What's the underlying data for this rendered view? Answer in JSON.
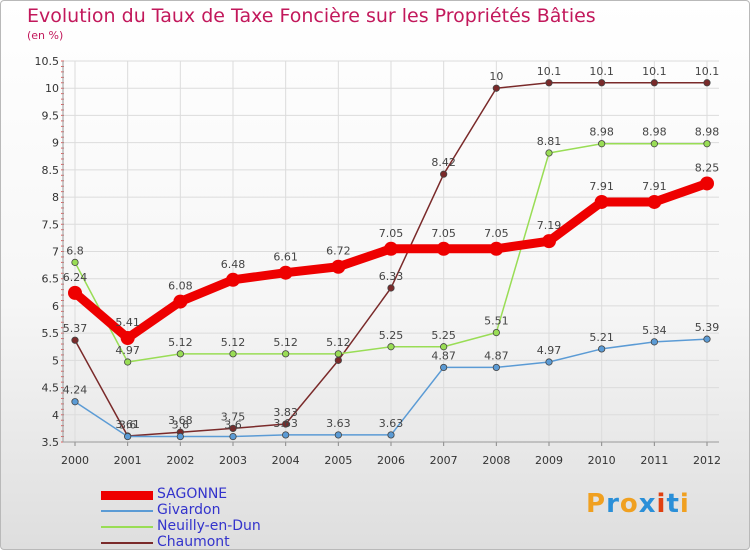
{
  "header": {
    "title": "Evolution du Taux de Taxe Foncière sur les Propriétés Bâties",
    "subtitle": "(en %)"
  },
  "logo": {
    "text": "Proxiti",
    "letters": [
      "P",
      "r",
      "o",
      "x",
      "i",
      "t",
      "i"
    ],
    "colors": [
      "#f0a020",
      "#2a8fd8",
      "#f0a020",
      "#2a8fd8",
      "#e04010",
      "#2a8fd8",
      "#f0a020"
    ]
  },
  "chart_data": {
    "type": "line",
    "x": [
      "2000",
      "2001",
      "2002",
      "2003",
      "2004",
      "2005",
      "2006",
      "2007",
      "2008",
      "2009",
      "2010",
      "2011",
      "2012"
    ],
    "ylim": [
      3.5,
      10.5
    ],
    "yticks": [
      "3.5",
      "4",
      "4.5",
      "5",
      "5.5",
      "6",
      "6.5",
      "7",
      "7.5",
      "8",
      "8.5",
      "9",
      "9.5",
      "10",
      "10.5"
    ],
    "grid": true,
    "legend_position": "bottom-left",
    "series": [
      {
        "name": "SAGONNE",
        "color": "#ee0000",
        "values": [
          6.24,
          5.41,
          6.08,
          6.48,
          6.61,
          6.72,
          7.05,
          7.05,
          7.05,
          7.19,
          7.91,
          7.91,
          8.25
        ],
        "labels": [
          "6.24",
          "5.41",
          "6.08",
          "6.48",
          "6.61",
          "6.72",
          "7.05",
          "7.05",
          "7.05",
          "7.19",
          "7.91",
          "7.91",
          "8.25"
        ]
      },
      {
        "name": "Givardon",
        "color": "#5b9bd5",
        "values": [
          4.24,
          3.6,
          3.6,
          3.6,
          3.63,
          3.63,
          3.63,
          4.87,
          4.87,
          4.97,
          5.21,
          5.34,
          5.39
        ],
        "labels": [
          "4.24",
          "3.6",
          "3.6",
          "3.6",
          "3.63",
          "3.63",
          "3.63",
          "4.87",
          "4.87",
          "4.97",
          "5.21",
          "5.34",
          "5.39"
        ]
      },
      {
        "name": "Neuilly-en-Dun",
        "color": "#99dd55",
        "values": [
          6.8,
          4.97,
          5.12,
          5.12,
          5.12,
          5.12,
          5.25,
          5.25,
          5.51,
          8.81,
          8.98,
          8.98,
          8.98
        ],
        "labels": [
          "6.8",
          "4.97",
          "5.12",
          "5.12",
          "5.12",
          "5.12",
          "5.25",
          "5.25",
          "5.51",
          "8.81",
          "8.98",
          "8.98",
          "8.98"
        ]
      },
      {
        "name": "Chaumont",
        "color": "#7a2a2a",
        "values": [
          5.37,
          3.61,
          3.68,
          3.75,
          3.83,
          5.0,
          6.33,
          8.42,
          10.0,
          10.1,
          10.1,
          10.1,
          10.1
        ],
        "labels": [
          "5.37",
          "3.61",
          "3.68",
          "3.75",
          "3.83",
          "",
          "6.33",
          "8.42",
          "10",
          "10.1",
          "10.1",
          "10.1",
          "10.1"
        ]
      }
    ]
  }
}
